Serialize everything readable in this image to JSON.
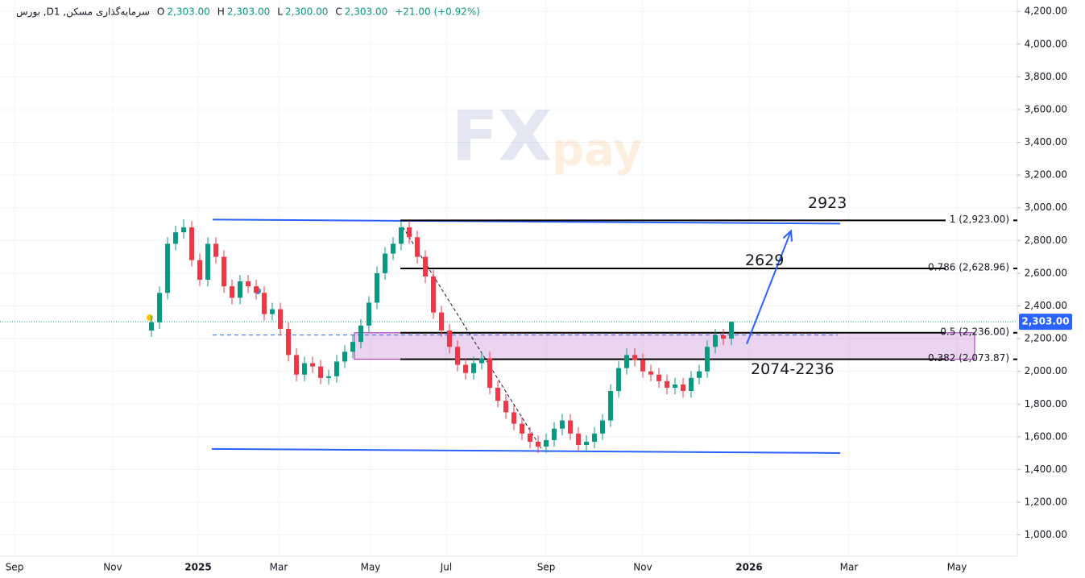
{
  "chart_data": {
    "type": "candlestick",
    "header": {
      "symbol": "بورس ,Dسرمایه‌گذاری مسکن, 1",
      "ohlc": [
        {
          "key": "O",
          "text": "2,303.00"
        },
        {
          "key": "H",
          "text": "2,303.00"
        },
        {
          "key": "L",
          "text": "2,300.00"
        },
        {
          "key": "C",
          "text": "2,303.00"
        }
      ],
      "change": "+21.00 (+0.92%)"
    },
    "watermark": [
      "FX",
      "pay"
    ],
    "up_color": "#089981",
    "down_color": "#f23645",
    "xlim": [
      -4,
      626
    ],
    "xticks": [
      {
        "value": 0,
        "label": "Sep"
      },
      {
        "value": 61,
        "label": "Nov"
      },
      {
        "value": 114,
        "label": "2025"
      },
      {
        "value": 164,
        "label": "Mar"
      },
      {
        "value": 221,
        "label": "May"
      },
      {
        "value": 268,
        "label": "Jul"
      },
      {
        "value": 330,
        "label": "Sep"
      },
      {
        "value": 390,
        "label": "Nov"
      },
      {
        "value": 456,
        "label": "2026"
      },
      {
        "value": 518,
        "label": "Mar"
      },
      {
        "value": 585,
        "label": "May"
      }
    ],
    "ylim": [
      870,
      4270
    ],
    "yticks": [
      {
        "value": 1000,
        "label": "1,000.00"
      },
      {
        "value": 1200,
        "label": "1,200.00"
      },
      {
        "value": 1400,
        "label": "1,400.00"
      },
      {
        "value": 1600,
        "label": "1,600.00"
      },
      {
        "value": 1800,
        "label": "1,800.00"
      },
      {
        "value": 2000,
        "label": "2,000.00"
      },
      {
        "value": 2200,
        "label": "2,200.00"
      },
      {
        "value": 2400,
        "label": "2,400.00"
      },
      {
        "value": 2600,
        "label": "2,600.00"
      },
      {
        "value": 2800,
        "label": "2,800.00"
      },
      {
        "value": 3000,
        "label": "3,000.00"
      },
      {
        "value": 3200,
        "label": "3,200.00"
      },
      {
        "value": 3400,
        "label": "3,400.00"
      },
      {
        "value": 3600,
        "label": "3,600.00"
      },
      {
        "value": 3800,
        "label": "3,800.00"
      },
      {
        "value": 4000,
        "label": "4,000.00"
      },
      {
        "value": 4200,
        "label": "4,200.00"
      }
    ],
    "grid": true,
    "candles": [
      [
        85,
        2250,
        2340,
        2210,
        2300
      ],
      [
        90,
        2300,
        2520,
        2260,
        2480
      ],
      [
        95,
        2480,
        2820,
        2440,
        2780
      ],
      [
        100,
        2780,
        2890,
        2740,
        2850
      ],
      [
        105,
        2850,
        2930,
        2810,
        2880
      ],
      [
        110,
        2880,
        2920,
        2640,
        2680
      ],
      [
        115,
        2680,
        2720,
        2520,
        2560
      ],
      [
        120,
        2560,
        2820,
        2520,
        2780
      ],
      [
        125,
        2780,
        2820,
        2660,
        2700
      ],
      [
        130,
        2700,
        2740,
        2480,
        2520
      ],
      [
        135,
        2520,
        2560,
        2410,
        2450
      ],
      [
        140,
        2450,
        2590,
        2410,
        2550
      ],
      [
        145,
        2550,
        2590,
        2480,
        2520
      ],
      [
        150,
        2520,
        2560,
        2440,
        2480
      ],
      [
        155,
        2480,
        2520,
        2310,
        2350
      ],
      [
        160,
        2350,
        2420,
        2310,
        2380
      ],
      [
        165,
        2380,
        2420,
        2220,
        2260
      ],
      [
        170,
        2260,
        2300,
        2060,
        2100
      ],
      [
        175,
        2100,
        2140,
        1940,
        1980
      ],
      [
        180,
        1980,
        2090,
        1940,
        2050
      ],
      [
        185,
        2050,
        2090,
        1990,
        2030
      ],
      [
        190,
        2030,
        2070,
        1920,
        1960
      ],
      [
        195,
        1960,
        2010,
        1920,
        1970
      ],
      [
        200,
        1970,
        2100,
        1930,
        2060
      ],
      [
        205,
        2060,
        2160,
        2020,
        2120
      ],
      [
        210,
        2120,
        2220,
        2080,
        2180
      ],
      [
        215,
        2180,
        2320,
        2140,
        2280
      ],
      [
        220,
        2280,
        2460,
        2240,
        2420
      ],
      [
        225,
        2420,
        2640,
        2380,
        2600
      ],
      [
        230,
        2600,
        2760,
        2560,
        2720
      ],
      [
        235,
        2720,
        2820,
        2680,
        2780
      ],
      [
        240,
        2780,
        2920,
        2740,
        2880
      ],
      [
        245,
        2880,
        2920,
        2780,
        2820
      ],
      [
        250,
        2820,
        2860,
        2660,
        2700
      ],
      [
        255,
        2700,
        2740,
        2540,
        2580
      ],
      [
        260,
        2580,
        2620,
        2320,
        2360
      ],
      [
        265,
        2360,
        2400,
        2210,
        2250
      ],
      [
        270,
        2250,
        2290,
        2110,
        2150
      ],
      [
        275,
        2150,
        2190,
        2000,
        2040
      ],
      [
        280,
        2040,
        2080,
        1950,
        1990
      ],
      [
        285,
        1990,
        2090,
        1950,
        2050
      ],
      [
        290,
        2050,
        2120,
        2010,
        2080
      ],
      [
        295,
        2080,
        2120,
        1860,
        1900
      ],
      [
        300,
        1900,
        1940,
        1780,
        1820
      ],
      [
        305,
        1820,
        1860,
        1710,
        1750
      ],
      [
        310,
        1750,
        1790,
        1640,
        1680
      ],
      [
        315,
        1680,
        1720,
        1580,
        1620
      ],
      [
        320,
        1620,
        1660,
        1530,
        1570
      ],
      [
        325,
        1570,
        1610,
        1500,
        1540
      ],
      [
        330,
        1540,
        1620,
        1500,
        1580
      ],
      [
        335,
        1580,
        1690,
        1540,
        1650
      ],
      [
        340,
        1650,
        1740,
        1610,
        1700
      ],
      [
        345,
        1700,
        1740,
        1580,
        1620
      ],
      [
        350,
        1620,
        1660,
        1510,
        1550
      ],
      [
        355,
        1550,
        1610,
        1510,
        1570
      ],
      [
        360,
        1570,
        1660,
        1530,
        1620
      ],
      [
        365,
        1620,
        1740,
        1580,
        1700
      ],
      [
        370,
        1700,
        1920,
        1660,
        1880
      ],
      [
        375,
        1880,
        2060,
        1840,
        2020
      ],
      [
        380,
        2020,
        2140,
        1980,
        2100
      ],
      [
        385,
        2100,
        2140,
        2030,
        2070
      ],
      [
        390,
        2070,
        2110,
        1960,
        2000
      ],
      [
        395,
        2000,
        2040,
        1940,
        1980
      ],
      [
        400,
        1980,
        2020,
        1900,
        1940
      ],
      [
        405,
        1940,
        1980,
        1860,
        1900
      ],
      [
        410,
        1900,
        1960,
        1860,
        1920
      ],
      [
        415,
        1920,
        1960,
        1840,
        1880
      ],
      [
        420,
        1880,
        2000,
        1840,
        1960
      ],
      [
        425,
        1960,
        2040,
        1920,
        2000
      ],
      [
        430,
        2000,
        2190,
        1960,
        2150
      ],
      [
        435,
        2150,
        2260,
        2110,
        2220
      ],
      [
        440,
        2220,
        2260,
        2160,
        2200
      ],
      [
        445,
        2200,
        2303,
        2160,
        2303
      ]
    ],
    "last_price": {
      "value": 2303,
      "label": "2,303.00"
    },
    "trendlines": [
      {
        "x": [
          123,
          512.5
        ],
        "y": [
          2928,
          2903
        ],
        "color": "#2962ff"
      },
      {
        "x": [
          122.5,
          512.5
        ],
        "y": [
          1526,
          1501
        ],
        "color": "#2962ff"
      }
    ],
    "fib_levels": [
      {
        "x": [
          239.5,
          578
        ],
        "value": 2923,
        "label": "1 (2,923.00)"
      },
      {
        "x": [
          239.5,
          578
        ],
        "value": 2628.96,
        "label": "0.786 (2,628.96)"
      },
      {
        "x": [
          239.5,
          578
        ],
        "value": 2236,
        "label": "0.5 (2,236.00)"
      },
      {
        "x": [
          239.5,
          578
        ],
        "value": 2073.87,
        "label": "0.382 (2,073.87)"
      }
    ],
    "zone": {
      "x": [
        211,
        596
      ],
      "y": [
        2074,
        2236
      ],
      "color": "#9c27b0"
    },
    "dashed_level": {
      "x": [
        123,
        511
      ],
      "y": [
        2222,
        2222
      ],
      "color": "#2962ff"
    },
    "dashed_diagonal": {
      "x": [
        241,
        327
      ],
      "y": [
        2883,
        1530
      ],
      "color": "#131722"
    },
    "arrow": {
      "x": [
        454.5,
        482
      ],
      "y": [
        2167,
        2858
      ],
      "color": "#2962ff"
    },
    "annotations": [
      {
        "text": "2923",
        "x": 492.5,
        "y": 3025
      },
      {
        "text": "2629",
        "x": 453.5,
        "y": 2675
      },
      {
        "text": "2074-2236",
        "x": 457,
        "y": 2010
      }
    ]
  }
}
